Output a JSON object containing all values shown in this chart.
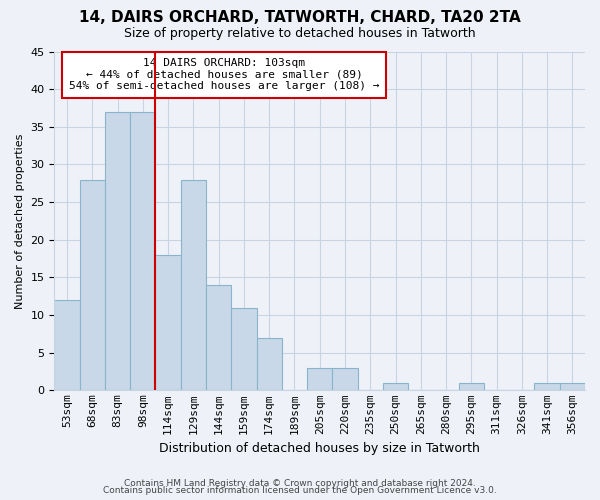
{
  "title": "14, DAIRS ORCHARD, TATWORTH, CHARD, TA20 2TA",
  "subtitle": "Size of property relative to detached houses in Tatworth",
  "xlabel": "Distribution of detached houses by size in Tatworth",
  "ylabel": "Number of detached properties",
  "bar_labels": [
    "53sqm",
    "68sqm",
    "83sqm",
    "98sqm",
    "114sqm",
    "129sqm",
    "144sqm",
    "159sqm",
    "174sqm",
    "189sqm",
    "205sqm",
    "220sqm",
    "235sqm",
    "250sqm",
    "265sqm",
    "280sqm",
    "295sqm",
    "311sqm",
    "326sqm",
    "341sqm",
    "356sqm"
  ],
  "bar_values": [
    12,
    28,
    37,
    37,
    18,
    28,
    14,
    11,
    7,
    0,
    3,
    3,
    0,
    1,
    0,
    0,
    1,
    0,
    0,
    1,
    1
  ],
  "bar_color": "#c8d8e8",
  "bar_edge_color": "#8ab4cc",
  "highlight_bar_index": 3,
  "highlight_color": "#cc0000",
  "ylim": [
    0,
    45
  ],
  "yticks": [
    0,
    5,
    10,
    15,
    20,
    25,
    30,
    35,
    40,
    45
  ],
  "annotation_line1": "14 DAIRS ORCHARD: 103sqm",
  "annotation_line2": "← 44% of detached houses are smaller (89)",
  "annotation_line3": "54% of semi-detached houses are larger (108) →",
  "annotation_box_color": "#ffffff",
  "annotation_box_edge": "#cc0000",
  "footnote1": "Contains HM Land Registry data © Crown copyright and database right 2024.",
  "footnote2": "Contains public sector information licensed under the Open Government Licence v3.0.",
  "background_color": "#eef2f8",
  "grid_color": "#c8d4e4",
  "title_fontsize": 11,
  "subtitle_fontsize": 9,
  "ylabel_fontsize": 8,
  "xlabel_fontsize": 9,
  "tick_fontsize": 8,
  "annotation_fontsize": 8,
  "footnote_fontsize": 6.5
}
